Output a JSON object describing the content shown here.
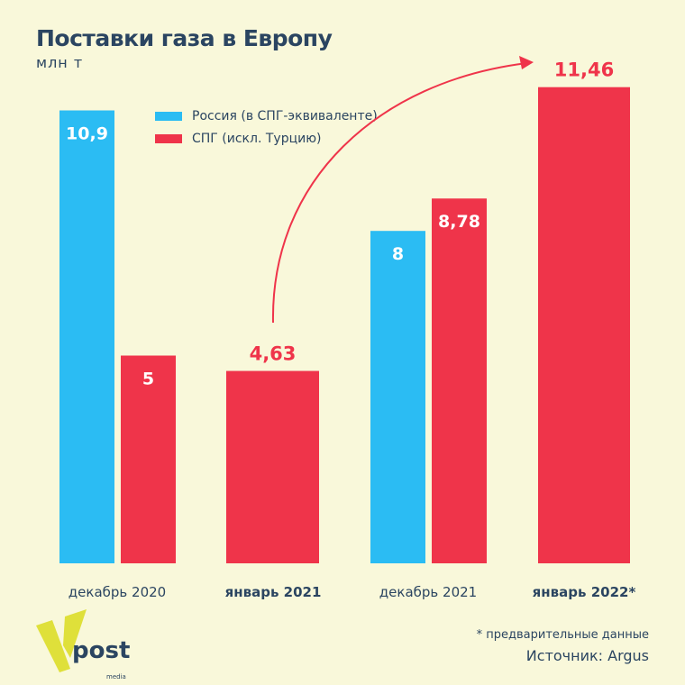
{
  "colors": {
    "russia": "#2bbcf3",
    "lng": "#ef344a",
    "text": "#2b4561",
    "bg": "#f9f8da"
  },
  "chart_data": {
    "type": "bar",
    "title": "Поставки газа в Европу",
    "ylabel": "млн т",
    "categories": [
      "декабрь 2020",
      "январь 2021",
      "декабрь 2021",
      "январь 2022*"
    ],
    "categories_bold": [
      false,
      true,
      false,
      true
    ],
    "series": [
      {
        "name": "Россия (в СПГ-эквиваленте)",
        "values": [
          10.9,
          null,
          8,
          null
        ],
        "labels": [
          "10,9",
          null,
          "8",
          null
        ]
      },
      {
        "name": "СПГ (искл. Турцию)",
        "values": [
          5,
          4.63,
          8.78,
          11.46
        ],
        "labels": [
          "5",
          "4,63",
          "8,78",
          "11,46"
        ]
      }
    ],
    "ylim": [
      0,
      12
    ],
    "grid": false,
    "legend": "top-left",
    "annotation": "arrow from январь 2021 to январь 2022*"
  },
  "footer": {
    "note": "* предварительные данные",
    "source": "Источник: Argus"
  },
  "logo": {
    "text": "post",
    "sub": "media"
  }
}
